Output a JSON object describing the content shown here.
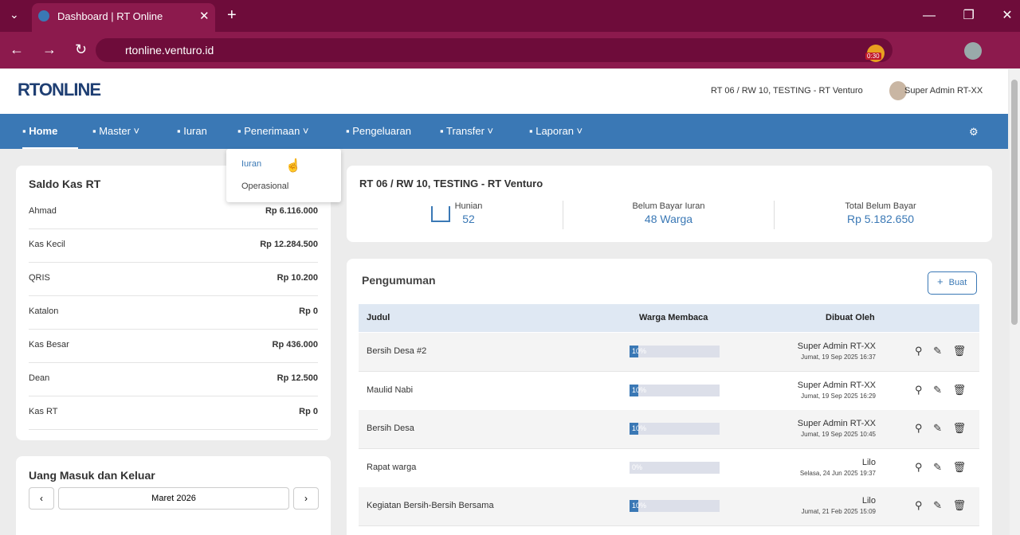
{
  "browser": {
    "tab_title": "Dashboard | RT Online",
    "url": "rtonline.venturo.id",
    "badge": "0:30"
  },
  "header": {
    "logo": "RTONLINE",
    "context": "RT 06 / RW 10, TESTING - RT Venturo",
    "user": "Super Admin RT-XX"
  },
  "nav": [
    {
      "label": "Home",
      "caret": false
    },
    {
      "label": "Master",
      "caret": true
    },
    {
      "label": "Iuran",
      "caret": false
    },
    {
      "label": "Penerimaan",
      "caret": true
    },
    {
      "label": "Pengeluaran",
      "caret": false
    },
    {
      "label": "Transfer",
      "caret": true
    },
    {
      "label": "Laporan",
      "caret": true
    }
  ],
  "dropdown": [
    "Iuran",
    "Operasional"
  ],
  "saldo": {
    "title": "Saldo Kas RT",
    "rows": [
      {
        "name": "Ahmad",
        "amount": "Rp 6.116.000"
      },
      {
        "name": "Kas Kecil",
        "amount": "Rp 12.284.500"
      },
      {
        "name": "QRIS",
        "amount": "Rp 10.200"
      },
      {
        "name": "Katalon",
        "amount": "Rp 0"
      },
      {
        "name": "Kas Besar",
        "amount": "Rp 436.000"
      },
      {
        "name": "Dean",
        "amount": "Rp 12.500"
      },
      {
        "name": "Kas RT",
        "amount": "Rp 0"
      }
    ]
  },
  "cashflow": {
    "title": "Uang Masuk dan Keluar",
    "prev": "‹",
    "month": "Maret 2026",
    "next": "›"
  },
  "summary": {
    "title": "RT 06 / RW 10, TESTING - RT Venturo",
    "stats": [
      {
        "label": "Hunian",
        "value": "52"
      },
      {
        "label": "Belum Bayar Iuran",
        "value": "48 Warga"
      },
      {
        "label": "Total Belum Bayar",
        "value": "Rp 5.182.650"
      }
    ]
  },
  "announcements": {
    "title": "Pengumuman",
    "button": "Buat",
    "headers": [
      "Judul",
      "Warga Membaca",
      "Dibuat Oleh"
    ],
    "rows": [
      {
        "title": "Bersih Desa #2",
        "read": 10,
        "read_label": "10%",
        "author": "Super Admin RT-XX",
        "date": "Jumat, 19 Sep 2025 16:37"
      },
      {
        "title": "Maulid Nabi",
        "read": 10,
        "read_label": "10%",
        "author": "Super Admin RT-XX",
        "date": "Jumat, 19 Sep 2025 16:29"
      },
      {
        "title": "Bersih Desa",
        "read": 10,
        "read_label": "10%",
        "author": "Super Admin RT-XX",
        "date": "Jumat, 19 Sep 2025 10:45"
      },
      {
        "title": "Rapat warga",
        "read": 0,
        "read_label": "0%",
        "author": "Lilo",
        "date": "Selasa, 24 Jun 2025 19:37"
      },
      {
        "title": "Kegiatan Bersih-Bersih Bersama",
        "read": 10,
        "read_label": "10%",
        "author": "Lilo",
        "date": "Jumat, 21 Feb 2025 15:09"
      }
    ]
  }
}
